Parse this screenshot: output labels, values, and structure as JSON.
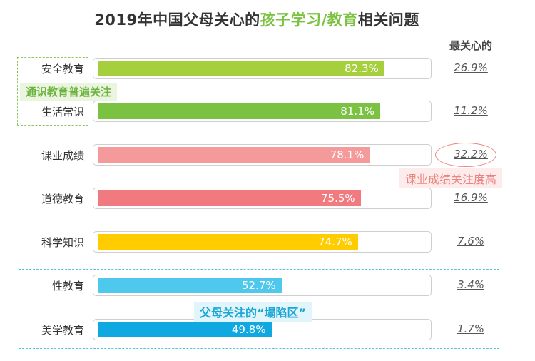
{
  "title": {
    "part1": "2019年中国父母关心的",
    "part2": "孩子学习/教育",
    "part3": "相关问题"
  },
  "column_header": "最关心的",
  "annotations": {
    "green": "通识教育普遍关注",
    "red": "课业成绩关注度高",
    "blue": "父母关注的“塌陷区”"
  },
  "chart_data": {
    "type": "bar",
    "orientation": "horizontal",
    "title": "2019年中国父母关心的孩子学习/教育相关问题",
    "xlim": [
      0,
      100
    ],
    "categories": [
      "安全教育",
      "生活常识",
      "课业成绩",
      "道德教育",
      "科学知识",
      "性教育",
      "美学教育"
    ],
    "values": [
      82.3,
      81.1,
      78.1,
      75.5,
      74.7,
      52.7,
      49.8
    ],
    "value_labels": [
      "82.3%",
      "81.1%",
      "78.1%",
      "75.5%",
      "74.7%",
      "52.7%",
      "49.8%"
    ],
    "most_concerned": [
      "26.9%",
      "11.2%",
      "32.2%",
      "16.9%",
      "7.6%",
      "3.4%",
      "1.7%"
    ],
    "colors": [
      "#a6cf3d",
      "#7cc242",
      "#f49a9b",
      "#f07a7e",
      "#ffcc00",
      "#4fc8ee",
      "#0fa8e0"
    ]
  }
}
